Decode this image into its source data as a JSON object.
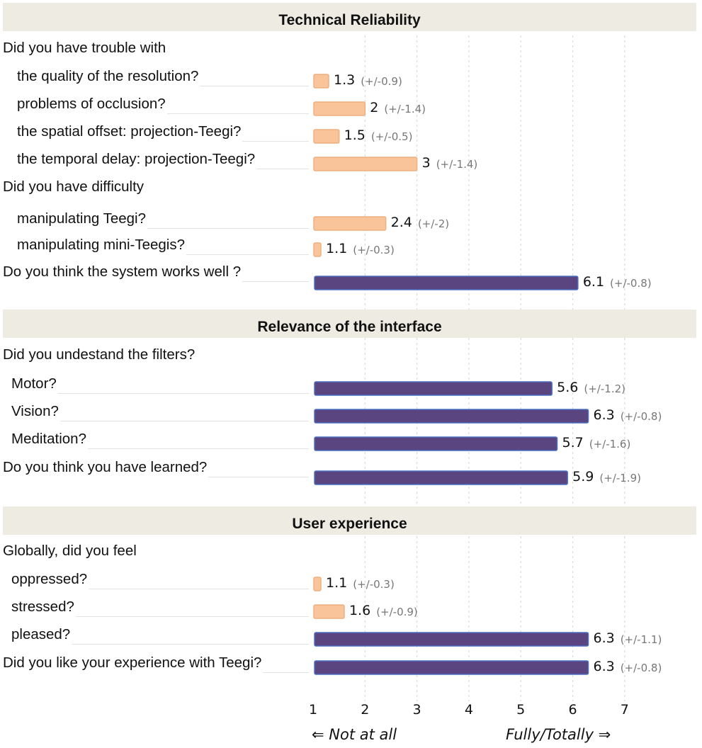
{
  "chart_data": {
    "type": "bar",
    "orientation": "horizontal",
    "xlim": [
      1,
      7
    ],
    "x_ticks": [
      "1",
      "2",
      "3",
      "4",
      "5",
      "6",
      "7"
    ],
    "grid": "vertical dashed",
    "x_left_label": "⇐ Not at all",
    "x_right_label": "Fully/Totally ⇒",
    "colors": {
      "low": "#f9c49a",
      "low_edge": "#eeb080",
      "high": "#5b4580",
      "high_edge": "#4a6fc0",
      "band": "#eeebe3"
    },
    "sections": [
      {
        "title": "Technical Reliability",
        "groups": [
          {
            "heading": "Did you have trouble with",
            "items": [
              {
                "label": "the quality of the resolution?",
                "value": 1.3,
                "value_text": "1.3",
                "err": "(+/-0.9)",
                "tone": "low"
              },
              {
                "label": "problems of occlusion?",
                "value": 2,
                "value_text": "2",
                "err": "(+/-1.4)",
                "tone": "low"
              },
              {
                "label": "the spatial offset: projection-Teegi?",
                "value": 1.5,
                "value_text": "1.5",
                "err": "(+/-0.5)",
                "tone": "low"
              },
              {
                "label": "the temporal delay: projection-Teegi?",
                "value": 3,
                "value_text": "3",
                "err": "(+/-1.4)",
                "tone": "low"
              }
            ]
          },
          {
            "heading": "Did you have difficulty",
            "items": [
              {
                "label": "manipulating Teegi?",
                "value": 2.4,
                "value_text": "2.4",
                "err": "(+/-2)",
                "tone": "low"
              },
              {
                "label": "manipulating mini-Teegis?",
                "value": 1.1,
                "value_text": "1.1",
                "err": "(+/-0.3)",
                "tone": "low"
              }
            ]
          },
          {
            "heading": null,
            "items": [
              {
                "label": "Do you think the system works well ?",
                "value": 6.1,
                "value_text": "6.1",
                "err": "(+/-0.8)",
                "tone": "high"
              }
            ]
          }
        ]
      },
      {
        "title": "Relevance of the interface",
        "groups": [
          {
            "heading": "Did you undestand the filters?",
            "items": [
              {
                "label": "Motor?",
                "value": 5.6,
                "value_text": "5.6",
                "err": "(+/-1.2)",
                "tone": "high"
              },
              {
                "label": "Vision?",
                "value": 6.3,
                "value_text": "6.3",
                "err": "(+/-0.8)",
                "tone": "high"
              },
              {
                "label": "Meditation?",
                "value": 5.7,
                "value_text": "5.7",
                "err": "(+/-1.6)",
                "tone": "high"
              }
            ]
          },
          {
            "heading": null,
            "items": [
              {
                "label": "Do you think you have learned?",
                "value": 5.9,
                "value_text": "5.9",
                "err": "(+/-1.9)",
                "tone": "high"
              }
            ]
          }
        ]
      },
      {
        "title": "User experience",
        "groups": [
          {
            "heading": "Globally, did you feel",
            "items": [
              {
                "label": "oppressed?",
                "value": 1.1,
                "value_text": "1.1",
                "err": "(+/-0.3)",
                "tone": "low"
              },
              {
                "label": "stressed?",
                "value": 1.6,
                "value_text": "1.6",
                "err": "(+/-0.9)",
                "tone": "low"
              },
              {
                "label": "pleased?",
                "value": 6.3,
                "value_text": "6.3",
                "err": "(+/-1.1)",
                "tone": "high"
              }
            ]
          },
          {
            "heading": null,
            "items": [
              {
                "label": "Did you like your experience with Teegi?",
                "value": 6.3,
                "value_text": "6.3",
                "err": "(+/-0.8)",
                "tone": "high"
              }
            ]
          }
        ]
      }
    ]
  }
}
